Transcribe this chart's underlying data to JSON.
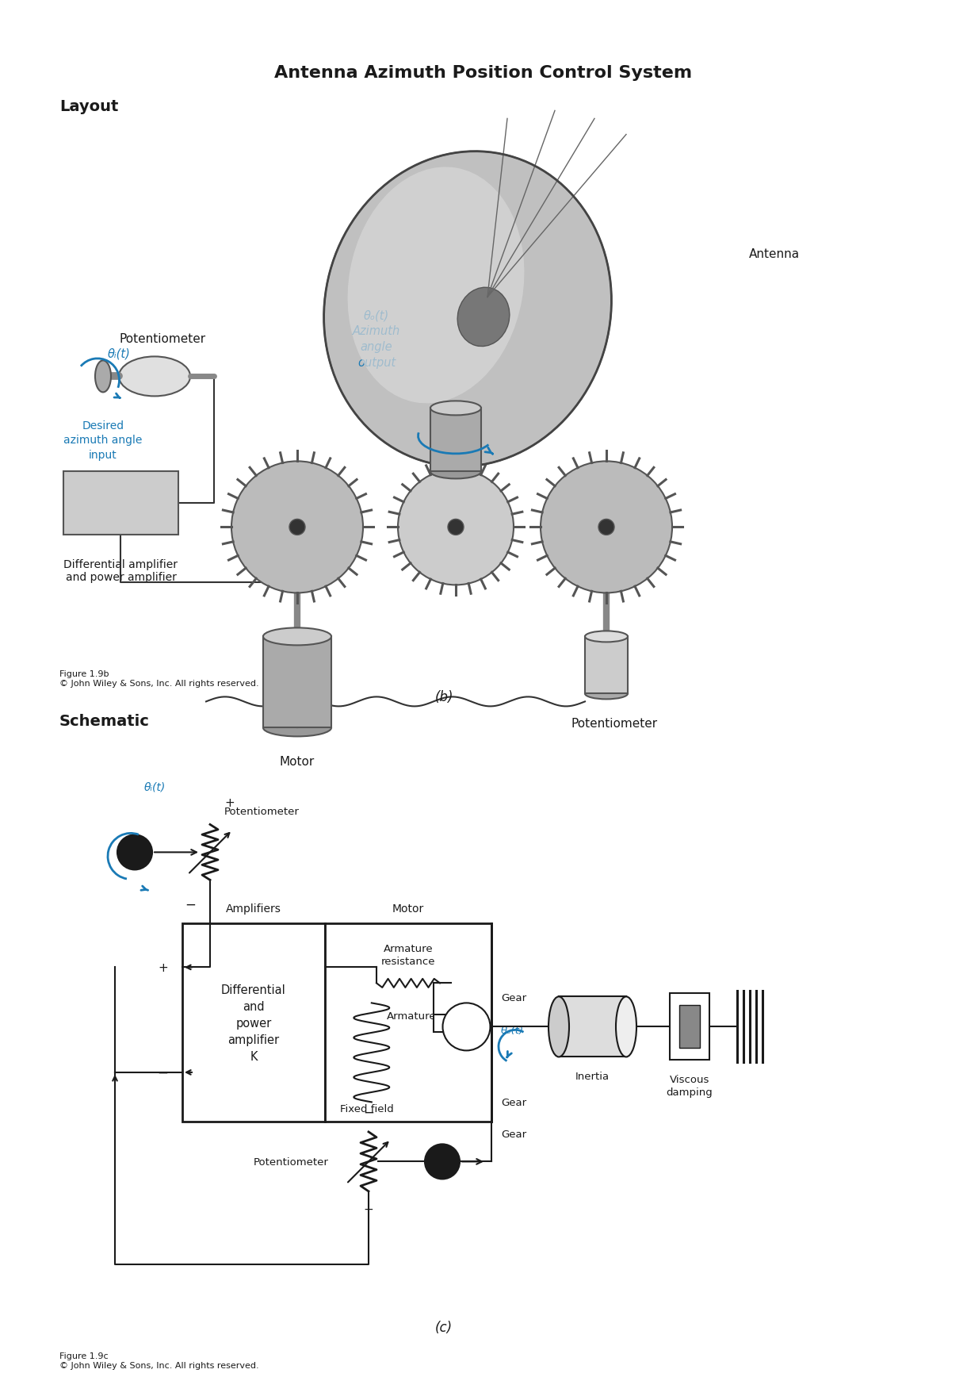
{
  "title": "Antenna Azimuth Position Control System",
  "layout_label": "Layout",
  "schematic_label": "Schematic",
  "fig_b": "Figure 1.9b\n© John Wiley & Sons, Inc. All rights reserved.",
  "fig_c": "Figure 1.9c\n© John Wiley & Sons, Inc. All rights reserved.",
  "label_b": "(b)",
  "label_c": "(c)",
  "blue": "#1a7ab5",
  "black": "#1a1a1a",
  "dkgray": "#555555",
  "mdgray": "#888888",
  "ltgray": "#cccccc",
  "dishgray": "#aaaaaa",
  "white": "#ffffff",
  "layout_pot_top": "Potentiometer",
  "layout_theta_i": "θᵢ(t)",
  "layout_desired": "Desired\nazimuth angle\ninput",
  "layout_theta_o": "θₒ(t)\nAzimuth\nangle\noutput",
  "layout_antenna": "Antenna",
  "layout_motor": "Motor",
  "layout_pot_bot": "Potentiometer",
  "layout_diff_amp": "Differential amplifier\nand power amplifier",
  "sch_theta_i": "θᵢ(t)",
  "sch_pot": "Potentiometer",
  "sch_amplifiers": "Amplifiers",
  "sch_motor": "Motor",
  "sch_arm_res": "Armature\nresistance",
  "sch_armature": "Armature",
  "sch_fixed": "Fixed field",
  "sch_diff": "Differential\nand\npower\namplifier\nK",
  "sch_gear_top": "Gear",
  "sch_theta_o": "θₒ(t)",
  "sch_gear_mid": "Gear",
  "sch_inertia": "Inertia",
  "sch_viscous": "Viscous\ndamping",
  "sch_gear_bot": "Gear",
  "sch_pot_bot": "Potentiometer"
}
